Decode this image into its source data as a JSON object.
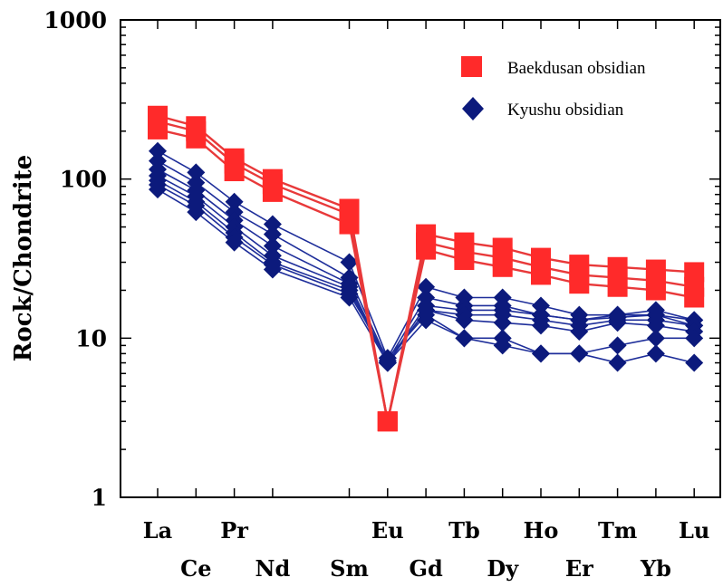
{
  "chart_data": {
    "type": "line",
    "ylabel": "Rock/Chondrite",
    "yscale": "log",
    "ylim": [
      1,
      1000
    ],
    "yticks": [
      "1",
      "10",
      "100",
      "1000"
    ],
    "categories": [
      "La",
      "Ce",
      "Pr",
      "Nd",
      "Sm",
      "Eu",
      "Gd",
      "Tb",
      "Dy",
      "Ho",
      "Er",
      "Tm",
      "Yb",
      "Lu"
    ],
    "category_positions": [
      0,
      1,
      2,
      3,
      5,
      6,
      7,
      8,
      9,
      10,
      11,
      12,
      13,
      14
    ],
    "x_labels_top": [
      "La",
      "Pr",
      "Eu",
      "Tb",
      "Ho",
      "Tm",
      "Lu"
    ],
    "x_labels_bottom": [
      "Ce",
      "Nd",
      "Sm",
      "Gd",
      "Dy",
      "Er",
      "Yb"
    ],
    "legend_position": "top-right",
    "groups": [
      {
        "name": "Baekdusan obsidian",
        "color": "#ff2a2a",
        "line_color": "#e8393a",
        "marker": "square",
        "series": [
          {
            "values": [
              250,
              215,
              135,
              100,
              65,
              3,
              45,
              40,
              37,
              32,
              29,
              28,
              27,
              26
            ]
          },
          {
            "values": [
              230,
              200,
              125,
              93,
              60,
              3,
              40,
              35,
              32,
              28,
              25,
              24,
              23,
              21
            ]
          },
          {
            "values": [
              205,
              180,
              112,
              83,
              52,
              3,
              36,
              31,
              28,
              25,
              22,
              21,
              20,
              18
            ]
          }
        ]
      },
      {
        "name": "Kyushu obsidian",
        "color": "#0c1a7c",
        "line_color": "#1e2e9a",
        "marker": "diamond",
        "series": [
          {
            "values": [
              150,
              110,
              72,
              52,
              30,
              7.5,
              21,
              18,
              18,
              16,
              14,
              14,
              15,
              13
            ]
          },
          {
            "values": [
              130,
              95,
              62,
              45,
              24,
              7.2,
              18,
              16,
              16,
              14,
              13,
              14,
              14,
              12
            ]
          },
          {
            "values": [
              115,
              85,
              55,
              38,
              22,
              7.0,
              16,
              15,
              15,
              14,
              13,
              13.5,
              14,
              13
            ]
          },
          {
            "values": [
              105,
              78,
              50,
              33,
              21,
              7.0,
              15,
              14,
              14,
              13,
              12,
              13,
              13,
              12
            ]
          },
          {
            "values": [
              98,
              72,
              46,
              30,
              20,
              7.0,
              15,
              13,
              12.5,
              12,
              11,
              12.5,
              12,
              11
            ]
          },
          {
            "values": [
              92,
              68,
              43,
              29,
              19,
              7.5,
              14,
              10,
              10,
              8.0,
              8.0,
              9.0,
              10,
              10
            ]
          },
          {
            "values": [
              86,
              62,
              40,
              27,
              18,
              7.0,
              13,
              10,
              9.0,
              8.0,
              8.0,
              7.0,
              8.0,
              7.0
            ]
          }
        ]
      }
    ]
  }
}
